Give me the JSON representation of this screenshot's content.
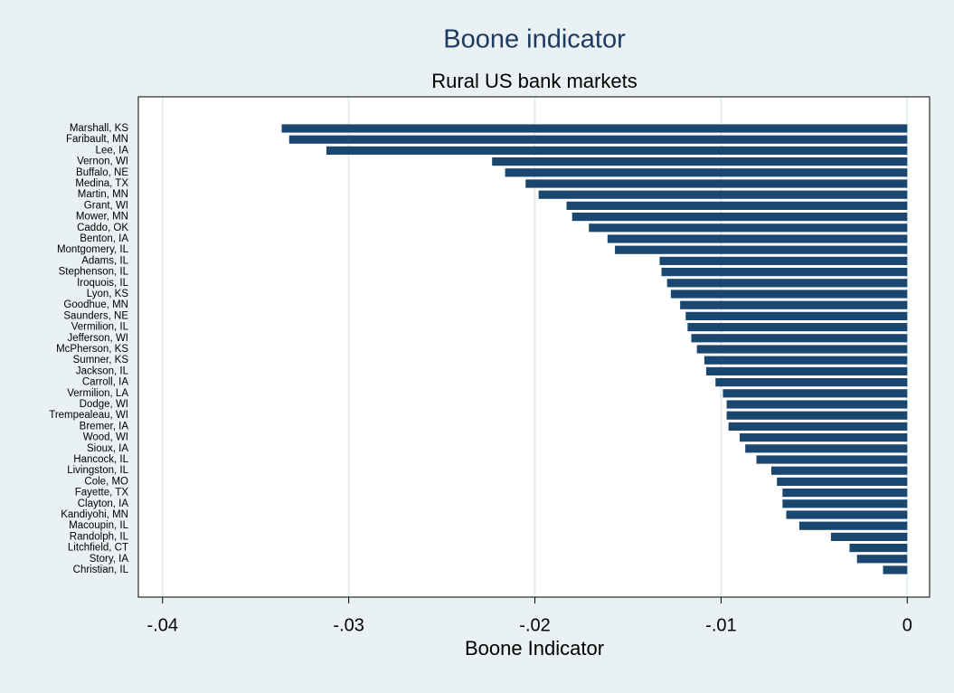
{
  "chart_data": {
    "type": "barh",
    "title": "Boone indicator",
    "subtitle": "Rural US bank markets",
    "x_label": "Boone Indicator",
    "categories": [
      "Marshall, KS",
      "Faribault, MN",
      "Lee, IA",
      "Vernon, WI",
      "Buffalo, NE",
      "Medina, TX",
      "Martin, MN",
      "Grant, WI",
      "Mower, MN",
      "Caddo, OK",
      "Benton, IA",
      "Montgomery, IL",
      "Adams, IL",
      "Stephenson, IL",
      "Iroquois, IL",
      "Lyon, KS",
      "Goodhue, MN",
      "Saunders, NE",
      "Vermilion, IL",
      "Jefferson, WI",
      "McPherson, KS",
      "Sumner, KS",
      "Jackson, IL",
      "Carroll, IA",
      "Vermilion, LA",
      "Dodge, WI",
      "Trempealeau, WI",
      "Bremer, IA",
      "Wood, WI",
      "Sioux, IA",
      "Hancock, IL",
      "Livingston, IL",
      "Cole, MO",
      "Fayette, TX",
      "Clayton, IA",
      "Kandiyohi, MN",
      "Macoupin, IL",
      "Randolph, IL",
      "Litchfield, CT",
      "Story, IA",
      "Christian, IL"
    ],
    "values": [
      -0.0336,
      -0.0332,
      -0.0312,
      -0.0223,
      -0.0216,
      -0.0205,
      -0.0198,
      -0.0183,
      -0.018,
      -0.0171,
      -0.0161,
      -0.0157,
      -0.0133,
      -0.0132,
      -0.0129,
      -0.0127,
      -0.0122,
      -0.0119,
      -0.0118,
      -0.0116,
      -0.0113,
      -0.0109,
      -0.0108,
      -0.0103,
      -0.0099,
      -0.0097,
      -0.0097,
      -0.0096,
      -0.009,
      -0.0087,
      -0.0081,
      -0.0073,
      -0.007,
      -0.0067,
      -0.0067,
      -0.0065,
      -0.0058,
      -0.0041,
      -0.0031,
      -0.0027,
      -0.0013
    ],
    "color": "#1a476f",
    "xlim": [
      -0.0413,
      0.0012
    ],
    "xticks": [
      {
        "value": -0.04,
        "label": "-.04"
      },
      {
        "value": -0.03,
        "label": "-.03"
      },
      {
        "value": -0.02,
        "label": "-.02"
      },
      {
        "value": -0.01,
        "label": "-.01"
      },
      0
    ],
    "grid": true
  }
}
